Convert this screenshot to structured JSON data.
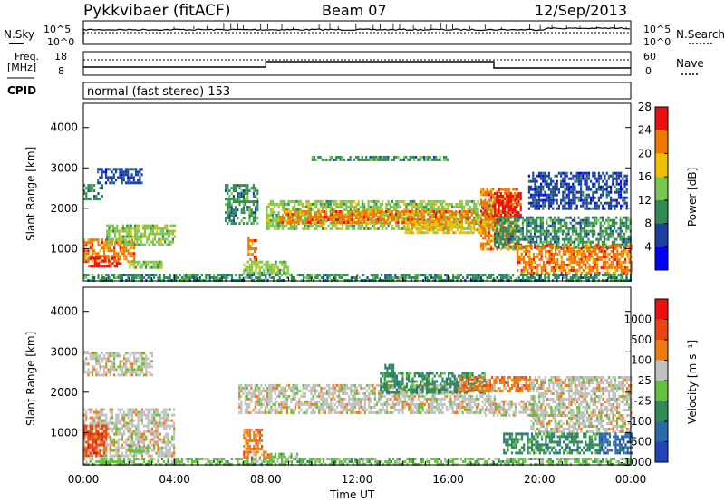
{
  "header": {
    "title": "Pykkvibaer (fitACF)",
    "beam": "Beam 07",
    "date": "12/Sep/2013"
  },
  "top_panels": {
    "nsky_label": "N.Sky",
    "nsearch_label": "N.Search",
    "freq_label_line1": "Freq.",
    "freq_label_line2": "[MHz]",
    "nave_label": "Nave",
    "cpid_label": "CPID",
    "cpid_text": "normal (fast stereo) 153",
    "noise_ticks_left": [
      "10^5",
      "10^0"
    ],
    "noise_ticks_right": [
      "10^5",
      "10^0"
    ],
    "freq_ticks": [
      "18",
      "8"
    ],
    "nave_ticks": [
      "60",
      "0"
    ]
  },
  "colors": {
    "power": [
      "#0000ff",
      "#1d3fa0",
      "#2f8a55",
      "#78c850",
      "#f0c000",
      "#f07800",
      "#ee1010"
    ],
    "velocity": [
      "#2244bb",
      "#2a6aa8",
      "#2f8a55",
      "#66c040",
      "#c0c0c0",
      "#ee7a10",
      "#e84510",
      "#ee1010"
    ]
  },
  "chart_data": [
    {
      "type": "heatmap",
      "name": "power",
      "ylabel": "Slant Range [km]",
      "yticks": [
        "1000",
        "2000",
        "3000",
        "4000"
      ],
      "ylim": [
        200,
        4600
      ],
      "xlim": [
        0,
        24
      ],
      "colorbar_label": "Power [dB]",
      "colorbar_ticks": [
        "4",
        "8",
        "12",
        "16",
        "20",
        "24",
        "28"
      ],
      "colorbar_range": [
        0,
        32
      ],
      "bands": [
        {
          "t0": 0.0,
          "t1": 2.2,
          "r0": 700,
          "r1": 1250,
          "level": 5
        },
        {
          "t0": 0.2,
          "t1": 1.6,
          "r0": 550,
          "r1": 800,
          "level": 6
        },
        {
          "t0": 1.0,
          "t1": 4.0,
          "r0": 1100,
          "r1": 1600,
          "level": 3
        },
        {
          "t0": 0.0,
          "t1": 0.8,
          "r0": 2200,
          "r1": 2600,
          "level": 2
        },
        {
          "t0": 0.6,
          "t1": 2.6,
          "r0": 2600,
          "r1": 3000,
          "level": 1
        },
        {
          "t0": 2.0,
          "t1": 3.4,
          "r0": 500,
          "r1": 700,
          "level": 3
        },
        {
          "t0": 6.2,
          "t1": 7.6,
          "r0": 1600,
          "r1": 2600,
          "level": 2
        },
        {
          "t0": 7.0,
          "t1": 9.0,
          "r0": 400,
          "r1": 700,
          "level": 3
        },
        {
          "t0": 7.2,
          "t1": 7.6,
          "r0": 700,
          "r1": 1300,
          "level": 5
        },
        {
          "t0": 8.0,
          "t1": 18.0,
          "r0": 1500,
          "r1": 2200,
          "level": 3
        },
        {
          "t0": 8.6,
          "t1": 17.2,
          "r0": 1650,
          "r1": 1950,
          "level": 5
        },
        {
          "t0": 14.0,
          "t1": 17.8,
          "r0": 1400,
          "r1": 1700,
          "level": 4
        },
        {
          "t0": 17.4,
          "t1": 19.0,
          "r0": 1000,
          "r1": 2500,
          "level": 5
        },
        {
          "t0": 18.0,
          "t1": 19.2,
          "r0": 1800,
          "r1": 2400,
          "level": 6
        },
        {
          "t0": 18.0,
          "t1": 24.0,
          "r0": 1000,
          "r1": 1800,
          "level": 2
        },
        {
          "t0": 19.0,
          "t1": 24.0,
          "r0": 400,
          "r1": 1100,
          "level": 5
        },
        {
          "t0": 19.5,
          "t1": 23.8,
          "r0": 2000,
          "r1": 2900,
          "level": 1
        },
        {
          "t0": 10.0,
          "t1": 16.0,
          "r0": 3200,
          "r1": 3300,
          "level": 2
        },
        {
          "t0": 0.0,
          "t1": 24.0,
          "r0": 200,
          "r1": 380,
          "level": 2
        }
      ]
    },
    {
      "type": "heatmap",
      "name": "velocity",
      "ylabel": "Slant Range [km]",
      "yticks": [
        "1000",
        "2000",
        "3000",
        "4000"
      ],
      "ylim": [
        200,
        4600
      ],
      "xlim": [
        0,
        24
      ],
      "xlabel": "Time UT",
      "xticks": [
        "00:00",
        "04:00",
        "08:00",
        "12:00",
        "16:00",
        "20:00",
        "00:00"
      ],
      "colorbar_label": "Velocity [m s⁻¹]",
      "colorbar_ticks": [
        "1000",
        "500",
        "100",
        "25",
        "-25",
        "-100",
        "-500",
        "-1000"
      ],
      "bands": [
        {
          "t0": 0.0,
          "t1": 4.0,
          "r0": 400,
          "r1": 1600,
          "level": 4
        },
        {
          "t0": 0.0,
          "t1": 3.0,
          "r0": 2400,
          "r1": 3000,
          "level": 4
        },
        {
          "t0": 0.0,
          "t1": 1.0,
          "r0": 400,
          "r1": 1200,
          "level": 6
        },
        {
          "t0": 2.0,
          "t1": 2.8,
          "r0": 550,
          "r1": 700,
          "level": 3
        },
        {
          "t0": 7.0,
          "t1": 7.8,
          "r0": 600,
          "r1": 1100,
          "level": 5
        },
        {
          "t0": 7.0,
          "t1": 8.2,
          "r0": 380,
          "r1": 550,
          "level": 5
        },
        {
          "t0": 8.2,
          "t1": 9.4,
          "r0": 400,
          "r1": 500,
          "level": 3
        },
        {
          "t0": 6.8,
          "t1": 18.0,
          "r0": 1500,
          "r1": 2200,
          "level": 4
        },
        {
          "t0": 13.0,
          "t1": 17.6,
          "r0": 2000,
          "r1": 2500,
          "level": 2
        },
        {
          "t0": 16.4,
          "t1": 19.6,
          "r0": 2000,
          "r1": 2400,
          "level": 5
        },
        {
          "t0": 17.6,
          "t1": 20.0,
          "r0": 1400,
          "r1": 1800,
          "level": 4
        },
        {
          "t0": 19.6,
          "t1": 24.0,
          "r0": 1000,
          "r1": 2400,
          "level": 4
        },
        {
          "t0": 18.4,
          "t1": 22.6,
          "r0": 500,
          "r1": 1000,
          "level": 2
        },
        {
          "t0": 22.6,
          "t1": 24.0,
          "r0": 500,
          "r1": 1000,
          "level": 1
        },
        {
          "t0": 13.2,
          "t1": 13.6,
          "r0": 2400,
          "r1": 2700,
          "level": 2
        },
        {
          "t0": 0.0,
          "t1": 24.0,
          "r0": 200,
          "r1": 380,
          "level": 3
        }
      ]
    }
  ]
}
